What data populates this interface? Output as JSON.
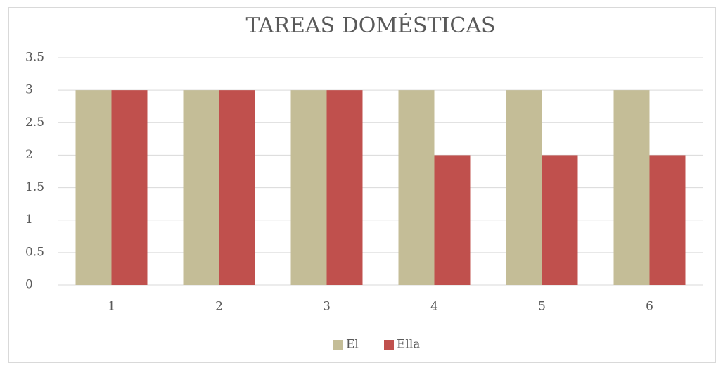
{
  "chart_data": {
    "type": "bar",
    "title": "TAREAS DOMÉSTICAS",
    "categories": [
      "1",
      "2",
      "3",
      "4",
      "5",
      "6"
    ],
    "series": [
      {
        "name": "El",
        "color": "#c4bd97",
        "values": [
          3,
          3,
          3,
          3,
          3,
          3
        ]
      },
      {
        "name": "Ella",
        "color": "#c0504d",
        "values": [
          3,
          3,
          3,
          2,
          2,
          2
        ]
      }
    ],
    "ylim": [
      0,
      3.5
    ],
    "yticks": [
      0,
      0.5,
      1,
      1.5,
      2,
      2.5,
      3,
      3.5
    ],
    "grid": true,
    "legend": "bottom"
  }
}
